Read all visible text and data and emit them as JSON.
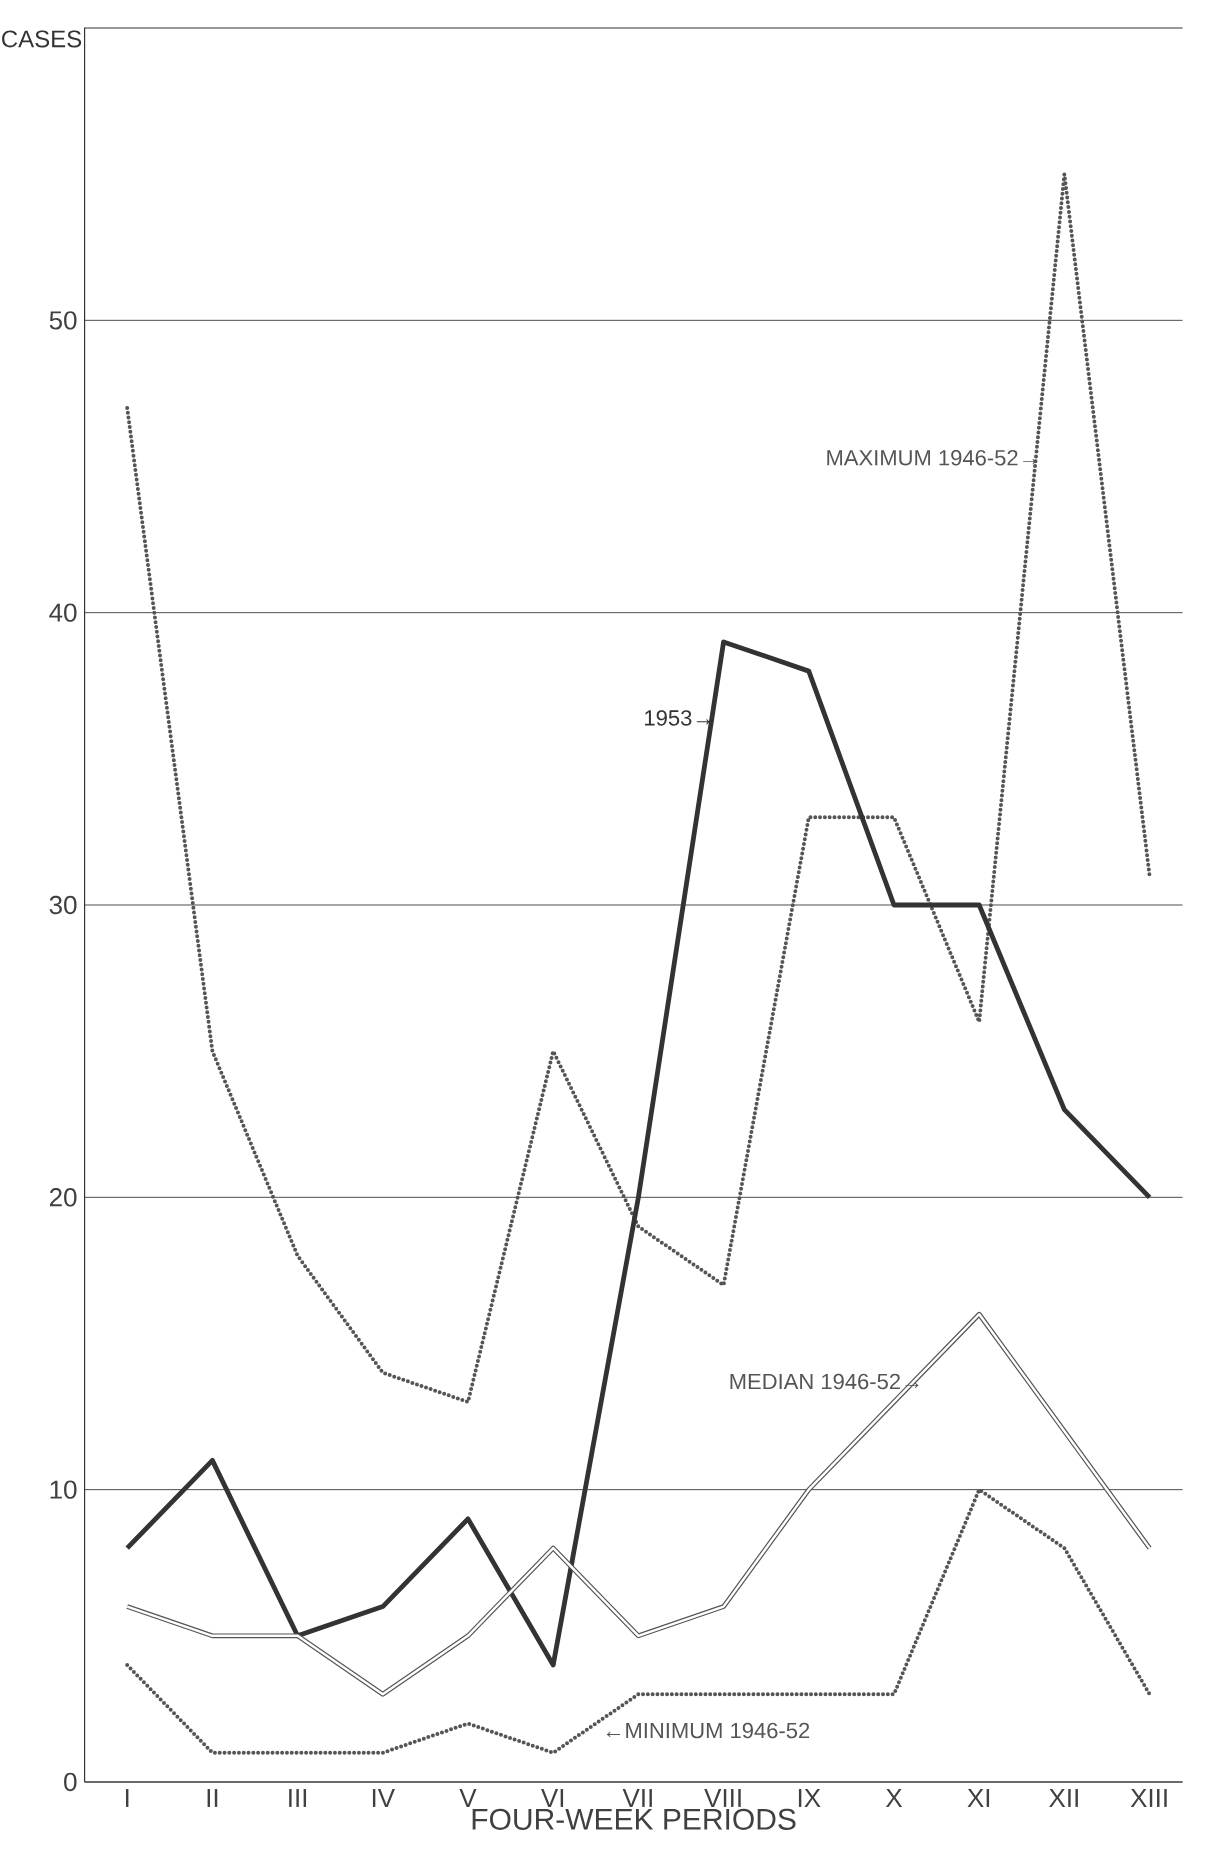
{
  "chart_data": {
    "type": "line",
    "xlabel": "FOUR-WEEK PERIODS",
    "ylabel": "CASES",
    "categories": [
      "I",
      "II",
      "III",
      "IV",
      "V",
      "VI",
      "VII",
      "VIII",
      "IX",
      "X",
      "XI",
      "XII",
      "XIII"
    ],
    "series": [
      {
        "name": "MAXIMUM 1946-52→",
        "color": "#555555",
        "line_style": "dotted",
        "values": [
          47,
          25,
          18,
          14,
          13,
          25,
          19,
          17,
          33,
          33,
          26,
          55,
          31
        ]
      },
      {
        "name": "1953→",
        "color": "#333333",
        "line_style": "solid",
        "values": [
          8,
          11,
          5,
          6,
          9,
          4,
          20,
          39,
          38,
          30,
          30,
          23,
          20
        ]
      },
      {
        "name": "MEDIAN 1946-52→",
        "color": "#555555",
        "line_style": "solid",
        "values": [
          6,
          5,
          5,
          3,
          5,
          8,
          5,
          6,
          10,
          13,
          16,
          12,
          8
        ]
      },
      {
        "name": "←MINIMUM 1946-52",
        "color": "#555555",
        "line_style": "dotted",
        "values": [
          4,
          1,
          1,
          1,
          2,
          1,
          3,
          3,
          3,
          3,
          10,
          8,
          3
        ]
      }
    ],
    "ylim": [
      0,
      60
    ],
    "yticks": [
      0,
      10,
      20,
      30,
      40,
      50
    ],
    "grid": "y",
    "marker": "none"
  }
}
